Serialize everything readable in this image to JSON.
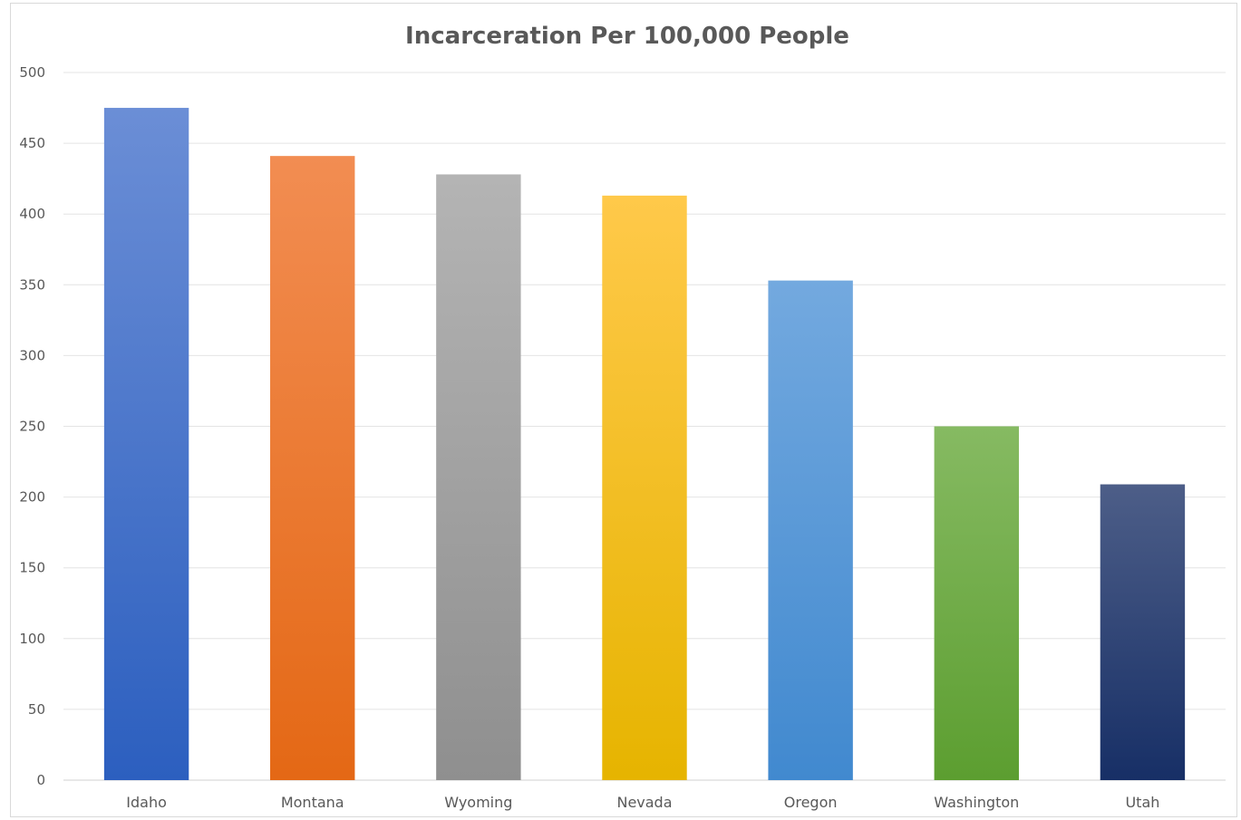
{
  "chart_data": {
    "type": "bar",
    "title": "Incarceration Per 100,000 People",
    "xlabel": "",
    "ylabel": "",
    "categories": [
      "Idaho",
      "Montana",
      "Wyoming",
      "Nevada",
      "Oregon",
      "Washington",
      "Utah"
    ],
    "values": [
      475,
      441,
      428,
      413,
      353,
      250,
      209
    ],
    "ylim": [
      0,
      500
    ],
    "yticks": [
      "0",
      "50",
      "100",
      "150",
      "200",
      "250",
      "300",
      "350",
      "400",
      "450",
      "500"
    ],
    "grid": true,
    "legend": "none",
    "colors": [
      [
        "#6b8ed6",
        "#2c5fbf"
      ],
      [
        "#f28d52",
        "#e46815"
      ],
      [
        "#b4b4b4",
        "#8f8f8f"
      ],
      [
        "#ffc94a",
        "#e6b400"
      ],
      [
        "#73a9df",
        "#4189cf"
      ],
      [
        "#86ba62",
        "#5c9e30"
      ],
      [
        "#4d5e88",
        "#172f66"
      ]
    ]
  }
}
